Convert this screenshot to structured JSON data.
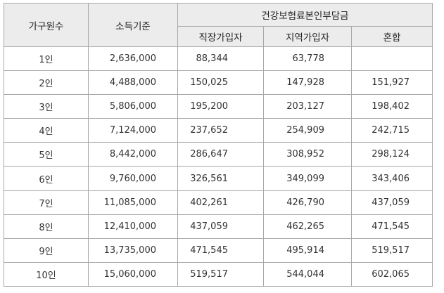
{
  "headers": {
    "household_size": "가구원수",
    "income_standard": "소득기준",
    "premium_group": "건강보험료본인부담금",
    "employee": "직장가입자",
    "regional": "지역가입자",
    "mixed": "혼합"
  },
  "rows": [
    {
      "size": "1인",
      "income": "2,636,000",
      "employee": "88,344",
      "regional": "63,778",
      "mixed": ""
    },
    {
      "size": "2인",
      "income": "4,488,000",
      "employee": "150,025",
      "regional": "147,928",
      "mixed": "151,927"
    },
    {
      "size": "3인",
      "income": "5,806,000",
      "employee": "195,200",
      "regional": "203,127",
      "mixed": "198,402"
    },
    {
      "size": "4인",
      "income": "7,124,000",
      "employee": "237,652",
      "regional": "254,909",
      "mixed": "242,715"
    },
    {
      "size": "5인",
      "income": "8,442,000",
      "employee": "286,647",
      "regional": "308,952",
      "mixed": "298,124"
    },
    {
      "size": "6인",
      "income": "9,760,000",
      "employee": "326,561",
      "regional": "349,099",
      "mixed": "343,406"
    },
    {
      "size": "7인",
      "income": "11,085,000",
      "employee": "402,261",
      "regional": "426,790",
      "mixed": "437,059"
    },
    {
      "size": "8인",
      "income": "12,410,000",
      "employee": "437,059",
      "regional": "462,265",
      "mixed": "471,545"
    },
    {
      "size": "9인",
      "income": "13,735,000",
      "employee": "471,545",
      "regional": "495,914",
      "mixed": "519,517"
    },
    {
      "size": "10인",
      "income": "15,060,000",
      "employee": "519,517",
      "regional": "544,044",
      "mixed": "602,065"
    }
  ]
}
